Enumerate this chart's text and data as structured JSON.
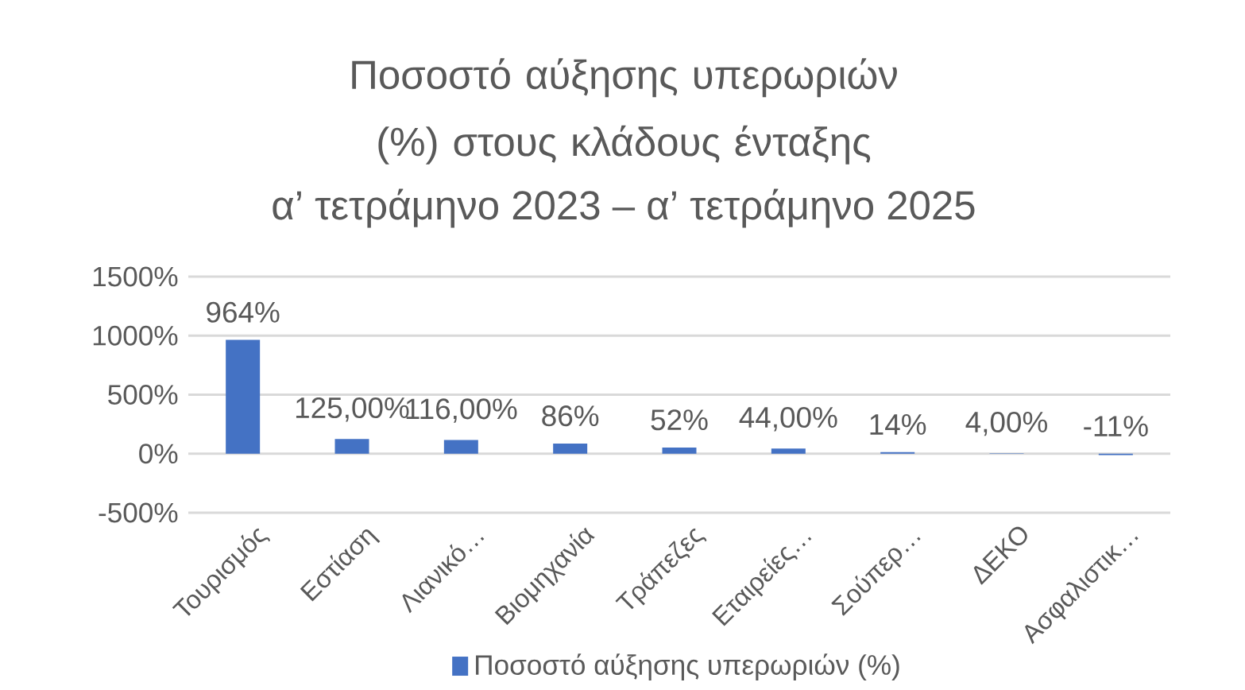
{
  "chart_data": {
    "type": "bar",
    "title": "Ποσοστό αύξησης υπερωριών (%) στους κλάδους ένταξης",
    "subtitle": "α’ τετράμηνο 2023 – α’ τετράμηνο 2025",
    "categories": [
      "Τουρισμός",
      "Εστίαση",
      "Λιανικό…",
      "Βιομηχανία",
      "Τράπεζες",
      "Εταιρείες…",
      "Σούπερ…",
      "ΔΕΚΟ",
      "Ασφαλιστικ…"
    ],
    "series": [
      {
        "name": "Ποσοστό αύξησης υπερωριών (%)",
        "color": "#4472c4",
        "values": [
          964,
          125,
          116,
          86,
          52,
          44,
          14,
          4,
          -11
        ],
        "value_labels": [
          "964%",
          "125,00%",
          "116,00%",
          "86%",
          "52%",
          "44,00%",
          "14%",
          "4,00%",
          "-11%"
        ]
      }
    ],
    "ylim": [
      -500,
      1500
    ],
    "yticks": [
      {
        "value": -500,
        "label": "-500%"
      },
      {
        "value": 0,
        "label": "0%"
      },
      {
        "value": 500,
        "label": "500%"
      },
      {
        "value": 1000,
        "label": "1000%"
      },
      {
        "value": 1500,
        "label": "1500%"
      }
    ],
    "grid": "y",
    "legend": "bottom"
  }
}
